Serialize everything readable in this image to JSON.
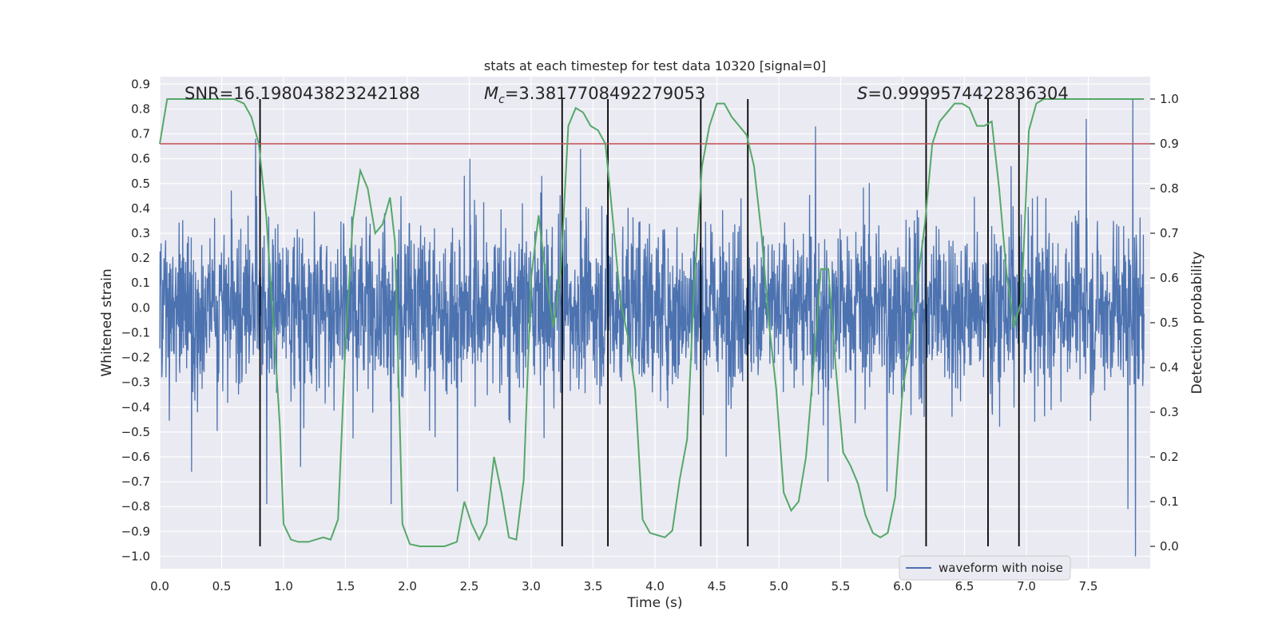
{
  "chart_data": {
    "type": "line",
    "title": "stats at each timestep for test data 10320 [signal=0]",
    "xlabel": "Time (s)",
    "ylabel_left": "Whitened strain",
    "ylabel_right": "Detection probability",
    "xlim": [
      0.0,
      8.0
    ],
    "ylim_left": [
      -1.05,
      0.93
    ],
    "ylim_right": [
      -0.05,
      1.05
    ],
    "x_ticks": [
      "0.0",
      "0.5",
      "1.0",
      "1.5",
      "2.0",
      "2.5",
      "3.0",
      "3.5",
      "4.0",
      "4.5",
      "5.0",
      "5.5",
      "6.0",
      "6.5",
      "7.0",
      "7.5"
    ],
    "x_tick_values": [
      0.0,
      0.5,
      1.0,
      1.5,
      2.0,
      2.5,
      3.0,
      3.5,
      4.0,
      4.5,
      5.0,
      5.5,
      6.0,
      6.5,
      7.0,
      7.5
    ],
    "y_left_ticks": [
      "0.9",
      "0.8",
      "0.7",
      "0.6",
      "0.5",
      "0.4",
      "0.3",
      "0.2",
      "0.1",
      "0.0",
      "−0.1",
      "−0.2",
      "−0.3",
      "−0.4",
      "−0.5",
      "−0.6",
      "−0.7",
      "−0.8",
      "−0.9",
      "−1.0"
    ],
    "y_left_tick_values": [
      0.9,
      0.8,
      0.7,
      0.6,
      0.5,
      0.4,
      0.3,
      0.2,
      0.1,
      0.0,
      -0.1,
      -0.2,
      -0.3,
      -0.4,
      -0.5,
      -0.6,
      -0.7,
      -0.8,
      -0.9,
      -1.0
    ],
    "y_right_ticks": [
      "1.0",
      "0.9",
      "0.8",
      "0.7",
      "0.6",
      "0.5",
      "0.4",
      "0.3",
      "0.2",
      "0.1",
      "0.0"
    ],
    "y_right_tick_values": [
      1.0,
      0.9,
      0.8,
      0.7,
      0.6,
      0.5,
      0.4,
      0.3,
      0.2,
      0.1,
      0.0
    ],
    "annotations": {
      "snr": "SNR=16.198043823242188",
      "mc_prefix": "M",
      "mc_sub": "c",
      "mc_value": "=3.3817708492279053",
      "s_prefix": "S",
      "s_value": "=0.9999574422836304"
    },
    "threshold": {
      "value": 0.9,
      "color": "#c44e52"
    },
    "waveform": {
      "name": "waveform with noise",
      "color": "#4c72b0",
      "samples": 3000,
      "typical_envelope": 0.3,
      "notable_peaks": [
        {
          "t": 0.78,
          "v": 0.68
        },
        {
          "t": 0.26,
          "v": -0.66
        },
        {
          "t": 0.87,
          "v": -0.79
        },
        {
          "t": 1.88,
          "v": -0.79
        },
        {
          "t": 2.42,
          "v": -0.74
        },
        {
          "t": 2.52,
          "v": 0.6
        },
        {
          "t": 3.42,
          "v": 0.64
        },
        {
          "t": 5.33,
          "v": 0.73
        },
        {
          "t": 5.43,
          "v": -0.7
        },
        {
          "t": 5.91,
          "v": -0.74
        },
        {
          "t": 7.53,
          "v": 0.76
        },
        {
          "t": 7.91,
          "v": 0.84
        },
        {
          "t": 7.93,
          "v": -1.0
        },
        {
          "t": 7.87,
          "v": -0.81
        }
      ]
    },
    "probability": {
      "name": "detection probability",
      "color": "#55a868",
      "x": [
        0.0,
        0.06,
        0.12,
        0.2,
        0.3,
        0.4,
        0.5,
        0.6,
        0.68,
        0.74,
        0.8,
        0.86,
        0.92,
        0.97,
        1.0,
        1.06,
        1.12,
        1.2,
        1.26,
        1.32,
        1.38,
        1.44,
        1.5,
        1.56,
        1.62,
        1.68,
        1.74,
        1.8,
        1.86,
        1.9,
        1.96,
        2.02,
        2.1,
        2.2,
        2.3,
        2.4,
        2.46,
        2.52,
        2.58,
        2.64,
        2.7,
        2.76,
        2.82,
        2.88,
        2.94,
        3.0,
        3.06,
        3.12,
        3.18,
        3.24,
        3.3,
        3.36,
        3.42,
        3.48,
        3.54,
        3.6,
        3.66,
        3.72,
        3.78,
        3.84,
        3.9,
        3.96,
        4.02,
        4.08,
        4.14,
        4.2,
        4.26,
        4.32,
        4.38,
        4.44,
        4.5,
        4.56,
        4.62,
        4.68,
        4.74,
        4.8,
        4.86,
        4.92,
        4.98,
        5.04,
        5.1,
        5.16,
        5.22,
        5.28,
        5.34,
        5.4,
        5.46,
        5.52,
        5.58,
        5.64,
        5.7,
        5.76,
        5.82,
        5.88,
        5.94,
        6.0,
        6.06,
        6.12,
        6.18,
        6.24,
        6.3,
        6.36,
        6.42,
        6.48,
        6.54,
        6.6,
        6.66,
        6.72,
        6.78,
        6.84,
        6.9,
        6.96,
        7.02,
        7.08,
        7.14,
        7.2,
        7.4,
        7.6,
        7.8,
        7.95
      ],
      "y": [
        0.9,
        1.0,
        1.0,
        1.0,
        1.0,
        1.0,
        1.0,
        1.0,
        0.99,
        0.96,
        0.9,
        0.74,
        0.49,
        0.27,
        0.05,
        0.015,
        0.01,
        0.01,
        0.015,
        0.02,
        0.015,
        0.06,
        0.45,
        0.73,
        0.84,
        0.8,
        0.7,
        0.72,
        0.78,
        0.68,
        0.05,
        0.005,
        0.0,
        0.0,
        0.0,
        0.01,
        0.1,
        0.05,
        0.015,
        0.05,
        0.2,
        0.12,
        0.02,
        0.015,
        0.15,
        0.6,
        0.74,
        0.6,
        0.49,
        0.62,
        0.94,
        0.98,
        0.97,
        0.94,
        0.93,
        0.9,
        0.73,
        0.55,
        0.47,
        0.35,
        0.06,
        0.03,
        0.025,
        0.02,
        0.035,
        0.15,
        0.24,
        0.6,
        0.85,
        0.94,
        0.99,
        0.99,
        0.96,
        0.94,
        0.92,
        0.85,
        0.7,
        0.5,
        0.35,
        0.12,
        0.08,
        0.1,
        0.2,
        0.4,
        0.62,
        0.62,
        0.4,
        0.21,
        0.18,
        0.14,
        0.07,
        0.03,
        0.02,
        0.03,
        0.11,
        0.35,
        0.45,
        0.59,
        0.72,
        0.9,
        0.95,
        0.97,
        0.99,
        0.99,
        0.98,
        0.94,
        0.94,
        0.95,
        0.8,
        0.61,
        0.49,
        0.55,
        0.93,
        0.99,
        1.0,
        1.0,
        1.0,
        1.0,
        1.0,
        1.0
      ]
    },
    "vertical_markers": [
      0.81,
      3.25,
      3.62,
      4.37,
      4.75,
      6.19,
      6.69,
      6.94
    ],
    "marker_color": "#000000",
    "legend": {
      "label": "waveform with noise",
      "placement": "lower-right"
    },
    "grid": true,
    "style": {
      "plot_bg": "#eaeaf2",
      "grid_color": "#ffffff"
    }
  }
}
